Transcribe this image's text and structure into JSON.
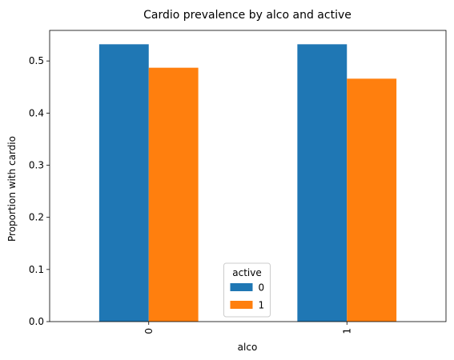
{
  "chart_data": {
    "type": "bar",
    "title": "Cardio prevalence by alco and active",
    "xlabel": "alco",
    "ylabel": "Proportion with cardio",
    "categories": [
      "0",
      "1"
    ],
    "series": [
      {
        "name": "0",
        "values": [
          0.532,
          0.532
        ],
        "color": "#1f77b4"
      },
      {
        "name": "1",
        "values": [
          0.487,
          0.466
        ],
        "color": "#ff7f0e"
      }
    ],
    "ylim": [
      0,
      0.5586
    ],
    "yticks": [
      0.0,
      0.1,
      0.2,
      0.3,
      0.4,
      0.5
    ],
    "ytick_labels": [
      "0.0",
      "0.1",
      "0.2",
      "0.3",
      "0.4",
      "0.5"
    ],
    "legend": {
      "title": "active",
      "placement": "lower center"
    },
    "grid": false
  }
}
